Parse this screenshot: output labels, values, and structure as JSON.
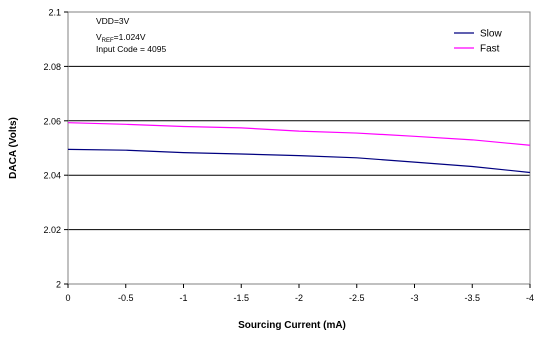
{
  "chart_data": {
    "type": "line",
    "title": "",
    "xlabel": "Sourcing Current (mA)",
    "ylabel": "DACA (Volts)",
    "x": [
      0,
      -0.5,
      -1,
      -1.5,
      -2,
      -2.5,
      -3,
      -3.5,
      -4
    ],
    "x_tick_labels": [
      "0",
      "-0.5",
      "-1",
      "-1.5",
      "-2",
      "-2.5",
      "-3",
      "-3.5",
      "-4"
    ],
    "y_tick_labels": [
      "2",
      "2.02",
      "2.04",
      "2.06",
      "2.08",
      "2.1"
    ],
    "y_ticks": [
      2,
      2.02,
      2.04,
      2.06,
      2.08,
      2.1
    ],
    "xlim": [
      0,
      -4
    ],
    "ylim": [
      2,
      2.1
    ],
    "grid": "horizontal",
    "legend_position": "top-right",
    "series": [
      {
        "name": "Slow",
        "color": "#000080",
        "values": [
          2.0495,
          2.0492,
          2.0483,
          2.0478,
          2.0472,
          2.0464,
          2.0448,
          2.0432,
          2.041
        ]
      },
      {
        "name": "Fast",
        "color": "#ff00ff",
        "values": [
          2.0593,
          2.0587,
          2.0579,
          2.0574,
          2.0562,
          2.0555,
          2.0543,
          2.053,
          2.051
        ]
      }
    ],
    "annotations": {
      "line1": "VDD=3V",
      "line2_main": "V",
      "line2_sub": "REF",
      "line2_tail": "=1.024V",
      "line3": "Input Code = 4095"
    }
  }
}
